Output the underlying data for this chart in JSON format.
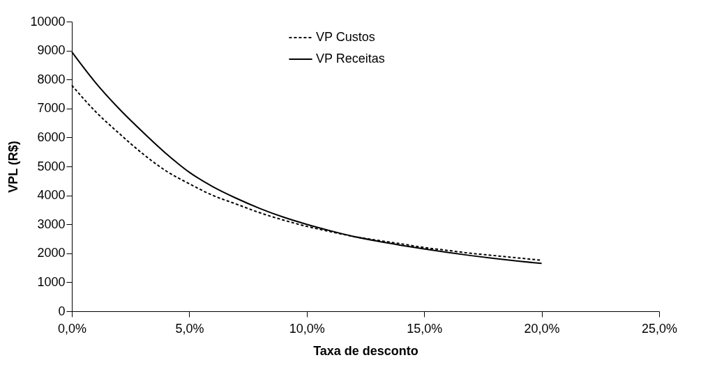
{
  "chart_data": {
    "type": "line",
    "xlabel": "Taxa de desconto",
    "ylabel": "VPL (R$)",
    "x": [
      0,
      0.01,
      0.02,
      0.03,
      0.04,
      0.05,
      0.06,
      0.07,
      0.08,
      0.09,
      0.1,
      0.11,
      0.12,
      0.13,
      0.14,
      0.15,
      0.16,
      0.17,
      0.18,
      0.19,
      0.2
    ],
    "series": [
      {
        "name": "VP Custos",
        "color": "#000000",
        "line_style": "dashed",
        "values": [
          7800,
          6900,
          6150,
          5450,
          4850,
          4400,
          4000,
          3700,
          3400,
          3150,
          2930,
          2750,
          2580,
          2450,
          2330,
          2200,
          2100,
          2000,
          1920,
          1840,
          1760
        ]
      },
      {
        "name": "VP Receitas",
        "color": "#000000",
        "line_style": "solid",
        "values": [
          8950,
          7900,
          7000,
          6200,
          5450,
          4800,
          4300,
          3900,
          3550,
          3250,
          3000,
          2780,
          2580,
          2420,
          2280,
          2150,
          2030,
          1920,
          1820,
          1730,
          1650
        ]
      }
    ],
    "xlim": [
      0,
      0.25
    ],
    "xticks": [
      {
        "value": 0,
        "label": "0,0%"
      },
      {
        "value": 0.05,
        "label": "5,0%"
      },
      {
        "value": 0.1,
        "label": "10,0%"
      },
      {
        "value": 0.15,
        "label": "15,0%"
      },
      {
        "value": 0.2,
        "label": "20,0%"
      },
      {
        "value": 0.25,
        "label": "25,0%"
      }
    ],
    "ylim": [
      0,
      10000
    ],
    "yticks": [
      0,
      1000,
      2000,
      3000,
      4000,
      5000,
      6000,
      7000,
      8000,
      9000,
      10000
    ],
    "grid": false,
    "legend": "top",
    "marker": "none"
  }
}
